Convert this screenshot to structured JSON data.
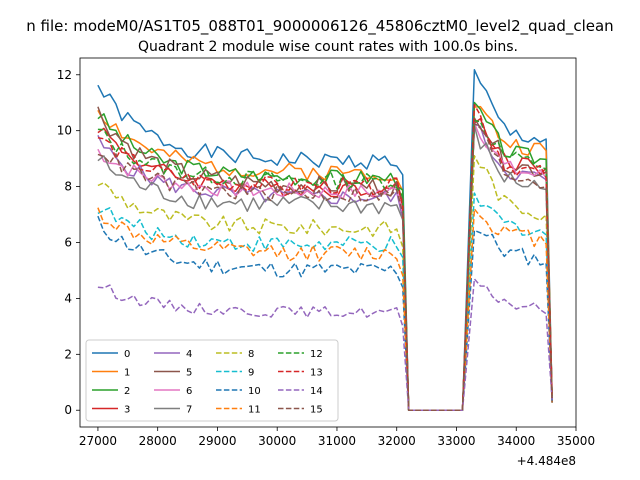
{
  "chart_data": {
    "type": "line",
    "suptitle": "n file: modeM0/AS1T05_088T01_9000006126_45806cztM0_level2_quad_clean",
    "title": "Quadrant 2 module wise count rates with 100.0s bins.",
    "xlabel": "",
    "ylabel": "",
    "x_offset_label": "+4.484e8",
    "xlim": [
      26700,
      35000
    ],
    "ylim": [
      -0.6,
      12.6
    ],
    "xticks": [
      27000,
      28000,
      29000,
      30000,
      31000,
      32000,
      33000,
      34000,
      35000
    ],
    "yticks": [
      0,
      2,
      4,
      6,
      8,
      10,
      12
    ],
    "grid": false,
    "legend_placement": "lower-left",
    "legend_columns": 4,
    "x_segments": [
      {
        "from": 27000,
        "to": 32100,
        "step": 100
      },
      {
        "from": 33300,
        "to": 34600,
        "step": 100
      }
    ],
    "gap": {
      "x": [
        32200,
        32300,
        33100
      ],
      "y": 0
    },
    "series": [
      {
        "name": "0",
        "color": "#1f77b4",
        "dash": "solid",
        "level_a": 8.9,
        "level_b": 10.2,
        "start": 11.6,
        "bstart": 12.0,
        "noise": 0.3,
        "seed": 1
      },
      {
        "name": "1",
        "color": "#ff7f0e",
        "dash": "solid",
        "level_a": 8.5,
        "level_b": 9.8,
        "start": 10.8,
        "bstart": 11.0,
        "noise": 0.3,
        "seed": 2
      },
      {
        "name": "2",
        "color": "#2ca02c",
        "dash": "solid",
        "level_a": 8.3,
        "level_b": 9.5,
        "start": 10.6,
        "bstart": 10.9,
        "noise": 0.3,
        "seed": 3
      },
      {
        "name": "3",
        "color": "#d62728",
        "dash": "solid",
        "level_a": 7.9,
        "level_b": 9.2,
        "start": 10.2,
        "bstart": 10.5,
        "noise": 0.3,
        "seed": 4
      },
      {
        "name": "4",
        "color": "#9467bd",
        "dash": "solid",
        "level_a": 7.6,
        "level_b": 8.8,
        "start": 9.6,
        "bstart": 10.2,
        "noise": 0.3,
        "seed": 5
      },
      {
        "name": "5",
        "color": "#8c564b",
        "dash": "solid",
        "level_a": 8.0,
        "level_b": 9.1,
        "start": 10.7,
        "bstart": 10.8,
        "noise": 0.35,
        "seed": 6
      },
      {
        "name": "6",
        "color": "#e377c2",
        "dash": "solid",
        "level_a": 7.8,
        "level_b": 8.9,
        "start": 9.3,
        "bstart": 10.3,
        "noise": 0.3,
        "seed": 7
      },
      {
        "name": "7",
        "color": "#7f7f7f",
        "dash": "solid",
        "level_a": 7.3,
        "level_b": 8.5,
        "start": 9.0,
        "bstart": 9.9,
        "noise": 0.35,
        "seed": 8
      },
      {
        "name": "8",
        "color": "#bcbd22",
        "dash": "dashed",
        "level_a": 6.5,
        "level_b": 7.6,
        "start": 8.2,
        "bstart": 9.2,
        "noise": 0.3,
        "seed": 9
      },
      {
        "name": "9",
        "color": "#17becf",
        "dash": "dashed",
        "level_a": 5.9,
        "level_b": 6.9,
        "start": 7.3,
        "bstart": 7.6,
        "noise": 0.3,
        "seed": 10
      },
      {
        "name": "10",
        "color": "#1f77b4",
        "dash": "dashed",
        "level_a": 5.0,
        "level_b": 5.9,
        "start": 6.7,
        "bstart": 6.6,
        "noise": 0.3,
        "seed": 11
      },
      {
        "name": "11",
        "color": "#ff7f0e",
        "dash": "dashed",
        "level_a": 5.6,
        "level_b": 6.6,
        "start": 7.1,
        "bstart": 7.1,
        "noise": 0.3,
        "seed": 12
      },
      {
        "name": "12",
        "color": "#2ca02c",
        "dash": "dashed",
        "level_a": 8.2,
        "level_b": 9.3,
        "start": 10.0,
        "bstart": 10.6,
        "noise": 0.3,
        "seed": 13
      },
      {
        "name": "13",
        "color": "#d62728",
        "dash": "dashed",
        "level_a": 8.0,
        "level_b": 9.0,
        "start": 9.8,
        "bstart": 10.9,
        "noise": 0.3,
        "seed": 14
      },
      {
        "name": "14",
        "color": "#9467bd",
        "dash": "dashed",
        "level_a": 3.5,
        "level_b": 4.1,
        "start": 4.5,
        "bstart": 4.5,
        "noise": 0.2,
        "seed": 15
      },
      {
        "name": "15",
        "color": "#8c564b",
        "dash": "dashed",
        "level_a": 7.7,
        "level_b": 8.7,
        "start": 9.4,
        "bstart": 10.3,
        "noise": 0.3,
        "seed": 16
      }
    ]
  }
}
